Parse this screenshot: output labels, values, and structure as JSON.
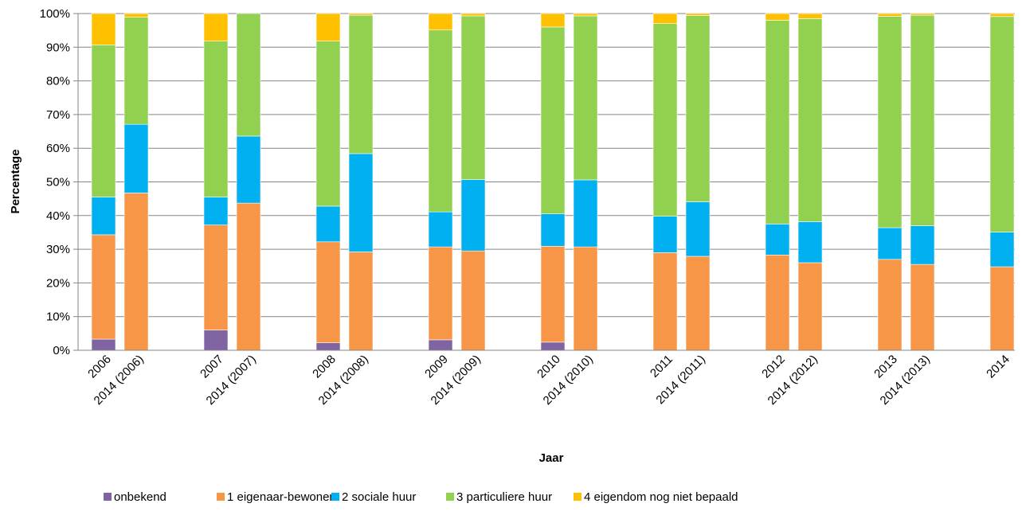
{
  "chart_data": {
    "type": "bar",
    "stacked": true,
    "xlabel": "Jaar",
    "ylabel": "Percentage",
    "ylim": [
      0,
      100
    ],
    "y_ticks": [
      "0%",
      "10%",
      "20%",
      "30%",
      "40%",
      "50%",
      "60%",
      "70%",
      "80%",
      "90%",
      "100%"
    ],
    "grid": "horizontal",
    "legend_position": "bottom",
    "categories": [
      "2006",
      "2014 (2006)",
      "2007",
      "2014 (2007)",
      "2008",
      "2014 (2008)",
      "2009",
      "2014 (2009)",
      "2010",
      "2014 (2010)",
      "2011",
      "2014 (2011)",
      "2012",
      "2014 (2012)",
      "2013",
      "2014 (2013)",
      "2014"
    ],
    "series": [
      {
        "name": "onbekend",
        "color": "#8064A2",
        "values": [
          3.3,
          0,
          6.0,
          0,
          2.2,
          0,
          3.1,
          0,
          2.4,
          0,
          0,
          0,
          0,
          0,
          0,
          0,
          0
        ]
      },
      {
        "name": "1 eigenaar-bewoner",
        "color": "#F79646",
        "values": [
          31.0,
          46.7,
          31.2,
          43.7,
          30.0,
          29.2,
          27.6,
          29.5,
          28.5,
          30.7,
          29.0,
          27.9,
          28.3,
          26.0,
          27.0,
          25.5,
          24.8
        ]
      },
      {
        "name": "2 sociale huur",
        "color": "#00B0F0",
        "values": [
          11.2,
          20.4,
          8.3,
          19.9,
          10.6,
          29.2,
          10.4,
          21.2,
          9.6,
          19.9,
          10.8,
          16.2,
          9.2,
          12.2,
          9.4,
          11.5,
          10.3
        ]
      },
      {
        "name": "3 particuliere huur",
        "color": "#92D050",
        "values": [
          45.2,
          31.8,
          46.3,
          36.4,
          49.0,
          41.1,
          54.0,
          48.6,
          55.5,
          48.7,
          57.2,
          55.3,
          60.5,
          60.3,
          62.8,
          62.5,
          64.0
        ]
      },
      {
        "name": "4 eigendom nog niet bepaald",
        "color": "#FFC000",
        "values": [
          9.3,
          1.1,
          8.2,
          0,
          8.2,
          0.5,
          4.9,
          0.7,
          4.0,
          0.7,
          3.0,
          0.6,
          2.0,
          1.5,
          0.8,
          0.5,
          0.9
        ]
      }
    ]
  }
}
